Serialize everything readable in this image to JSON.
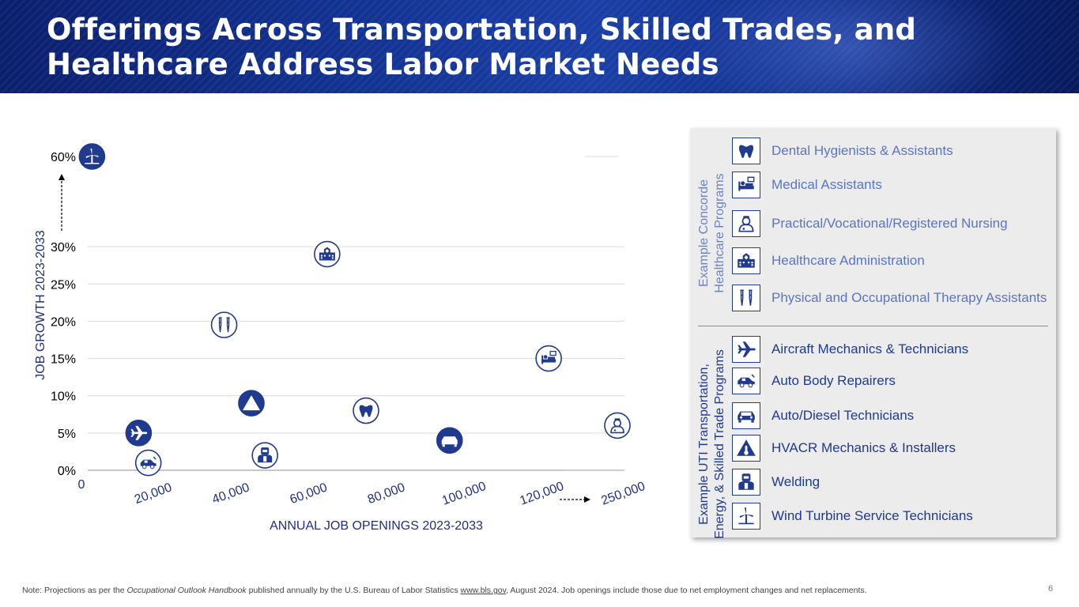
{
  "header": {
    "title_line1": "Offerings Across Transportation, Skilled Trades, and",
    "title_line2": "Healthcare Address Labor Market Needs"
  },
  "chart_data": {
    "type": "scatter",
    "xlabel": "ANNUAL JOB OPENINGS 2023-2033",
    "ylabel": "JOB GROWTH 2023-2033",
    "x_tick_labels": [
      "0",
      "20,000",
      "40,000",
      "60,000",
      "80,000",
      "100,000",
      "120,000",
      "250,000"
    ],
    "y_tick_labels": [
      "0%",
      "5%",
      "10%",
      "15%",
      "20%",
      "25%",
      "30%",
      "60%"
    ],
    "x_axis_break": "120,000 to 250,000",
    "y_axis_break": "30% to 60%",
    "grid": true,
    "points": [
      {
        "program": "Wind Turbine Service Technicians",
        "icon": "wind-turbine-icon",
        "x": 1500,
        "y": 60
      },
      {
        "program": "Aircraft Mechanics & Technicians",
        "icon": "airplane-icon",
        "x": 13500,
        "y": 5
      },
      {
        "program": "Auto Body Repairers",
        "icon": "auto-body-icon",
        "x": 16000,
        "y": 1
      },
      {
        "program": "Physical and Occupational Therapy Assistants",
        "icon": "crutches-icon",
        "x": 35500,
        "y": 19.5
      },
      {
        "program": "HVACR Mechanics & Installers",
        "icon": "thermometer-icon",
        "x": 42500,
        "y": 9
      },
      {
        "program": "Welding",
        "icon": "welder-icon",
        "x": 46000,
        "y": 2
      },
      {
        "program": "Healthcare Administration",
        "icon": "hospital-icon",
        "x": 62000,
        "y": 29
      },
      {
        "program": "Dental Hygienists & Assistants",
        "icon": "tooth-icon",
        "x": 72000,
        "y": 8
      },
      {
        "program": "Auto/Diesel Technicians",
        "icon": "car-icon",
        "x": 93500,
        "y": 4
      },
      {
        "program": "Medical Assistants",
        "icon": "patient-bed-icon",
        "x": 119000,
        "y": 15
      },
      {
        "program": "Practical/Vocational/Registered Nursing",
        "icon": "nurse-icon",
        "x": 250000,
        "y": 6
      }
    ]
  },
  "legend": {
    "healthcare_heading_line1": "Example Concorde",
    "healthcare_heading_line2": "Healthcare Programs",
    "trades_heading_line1": "Example UTI Transportation,",
    "trades_heading_line2": "Energy, & Skilled Trade Programs",
    "healthcare_items": [
      {
        "label": "Dental Hygienists & Assistants",
        "icon": "tooth-icon"
      },
      {
        "label": "Medical Assistants",
        "icon": "patient-bed-icon"
      },
      {
        "label": "Practical/Vocational/Registered Nursing",
        "icon": "nurse-icon"
      },
      {
        "label": "Healthcare Administration",
        "icon": "hospital-icon"
      },
      {
        "label": "Physical and Occupational Therapy Assistants",
        "icon": "crutches-icon"
      }
    ],
    "trades_items": [
      {
        "label": "Aircraft Mechanics & Technicians",
        "icon": "airplane-icon"
      },
      {
        "label": "Auto Body Repairers",
        "icon": "auto-body-icon"
      },
      {
        "label": "Auto/Diesel Technicians",
        "icon": "car-icon"
      },
      {
        "label": "HVACR Mechanics & Installers",
        "icon": "thermometer-icon"
      },
      {
        "label": "Welding",
        "icon": "welder-icon"
      },
      {
        "label": "Wind Turbine Service Technicians",
        "icon": "wind-turbine-icon"
      }
    ]
  },
  "colors": {
    "navy": "#1f3a8f",
    "healthcare_text": "#5a76c0",
    "trades_text": "#1f3a8f",
    "banner": "#12318f"
  },
  "footnote": {
    "prefix": "Note: Projections as per the ",
    "handbook": "Occupational Outlook Handbook",
    "middle": " published annually by the U.S. Bureau of Labor Statistics ",
    "link": "www.bls.gov",
    "suffix": ", August 2024. Job openings include those due to net employment changes and net replacements."
  },
  "page_number": "6"
}
